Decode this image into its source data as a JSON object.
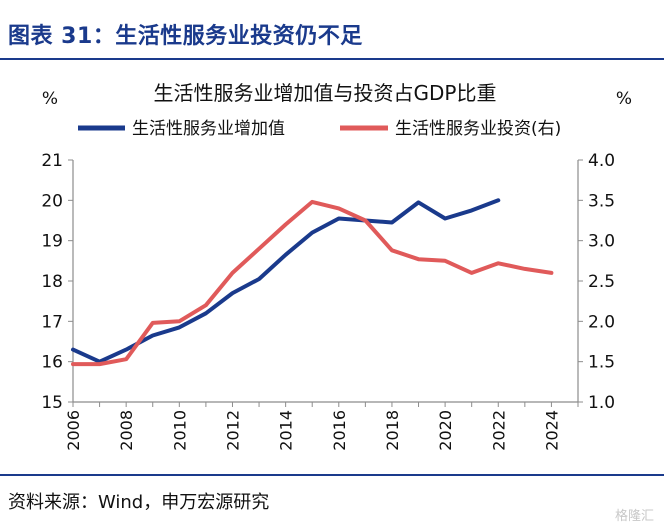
{
  "figure_title": "图表 31：生活性服务业投资仍不足",
  "source": "资料来源：Wind，申万宏源研究",
  "watermark": "格隆汇",
  "colors": {
    "primary": "#1a3a8c",
    "secondary": "#e05a5a"
  },
  "chart_data": {
    "type": "line",
    "title": "生活性服务业增加值与投资占GDP比重",
    "y_left_label": "%",
    "y_right_label": "%",
    "ylim_left": [
      15,
      21
    ],
    "ylim_right": [
      1.0,
      4.0
    ],
    "xlim": [
      2006,
      2025
    ],
    "y_left_ticks": [
      "15",
      "16",
      "17",
      "18",
      "19",
      "20",
      "21"
    ],
    "y_right_ticks": [
      "1.0",
      "1.5",
      "2.0",
      "2.5",
      "3.0",
      "3.5",
      "4.0"
    ],
    "x_ticks": [
      "2006",
      "2008",
      "2010",
      "2012",
      "2014",
      "2016",
      "2018",
      "2020",
      "2022",
      "2024"
    ],
    "legend_position": "top",
    "series": [
      {
        "name": "生活性服务业增加值",
        "axis": "left",
        "color": "#1a3a8c",
        "x": [
          2006,
          2007,
          2008,
          2009,
          2010,
          2011,
          2012,
          2013,
          2014,
          2015,
          2016,
          2017,
          2018,
          2019,
          2020,
          2021,
          2022
        ],
        "values": [
          16.3,
          16.0,
          16.3,
          16.65,
          16.85,
          17.2,
          17.7,
          18.05,
          18.65,
          19.2,
          19.55,
          19.5,
          19.45,
          19.95,
          19.55,
          19.75,
          20.0
        ]
      },
      {
        "name": "生活性服务业投资(右)",
        "axis": "right",
        "color": "#e05a5a",
        "x": [
          2006,
          2007,
          2008,
          2009,
          2010,
          2011,
          2012,
          2013,
          2014,
          2015,
          2016,
          2017,
          2018,
          2019,
          2020,
          2021,
          2022,
          2023,
          2024
        ],
        "values": [
          1.47,
          1.47,
          1.53,
          1.98,
          2.0,
          2.2,
          2.6,
          2.9,
          3.2,
          3.48,
          3.4,
          3.25,
          2.88,
          2.77,
          2.75,
          2.6,
          2.72,
          2.65,
          2.6
        ]
      }
    ]
  }
}
